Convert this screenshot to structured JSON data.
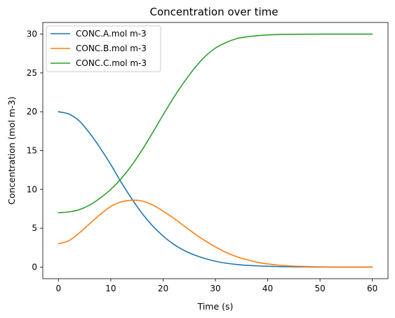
{
  "chart_data": {
    "type": "line",
    "title": "Concentration over time",
    "xlabel": "Time (s)",
    "ylabel": "Concentration (mol m-3)",
    "xlim": [
      -3,
      63
    ],
    "ylim": [
      -1.5,
      31.5
    ],
    "xticks": [
      0,
      10,
      20,
      30,
      40,
      50,
      60
    ],
    "yticks": [
      0,
      5,
      10,
      15,
      20,
      25,
      30
    ],
    "grid": false,
    "legend": "top-left",
    "x": [
      0,
      2,
      4,
      6,
      8,
      10,
      12,
      14,
      16,
      18,
      20,
      22,
      24,
      26,
      28,
      30,
      32,
      34,
      36,
      38,
      40,
      42,
      44,
      46,
      48,
      50,
      52,
      54,
      56,
      58,
      60
    ],
    "series": [
      {
        "name": "CONC.A.mol m-3",
        "color": "#1f77b4",
        "values": [
          20.0,
          19.7,
          18.8,
          17.2,
          15.3,
          13.2,
          10.9,
          8.8,
          6.9,
          5.3,
          4.0,
          2.95,
          2.15,
          1.55,
          1.1,
          0.75,
          0.5,
          0.34,
          0.22,
          0.15,
          0.1,
          0.06,
          0.04,
          0.02,
          0.01,
          0.0,
          0.0,
          0.0,
          0.0,
          0.0,
          0.0
        ]
      },
      {
        "name": "CONC.B.mol m-3",
        "color": "#ff7f0e",
        "values": [
          3.0,
          3.4,
          4.4,
          5.6,
          6.8,
          7.8,
          8.4,
          8.6,
          8.5,
          8.0,
          7.2,
          6.3,
          5.3,
          4.3,
          3.4,
          2.6,
          1.9,
          1.35,
          0.95,
          0.62,
          0.4,
          0.25,
          0.15,
          0.09,
          0.05,
          0.03,
          0.01,
          0.0,
          0.0,
          0.0,
          0.0
        ]
      },
      {
        "name": "CONC.C.mol m-3",
        "color": "#2ca02c",
        "values": [
          7.0,
          7.1,
          7.4,
          8.0,
          8.9,
          10.0,
          11.4,
          13.1,
          15.1,
          17.3,
          19.6,
          21.8,
          23.8,
          25.6,
          27.1,
          28.2,
          28.9,
          29.4,
          29.65,
          29.8,
          29.9,
          29.95,
          29.97,
          29.98,
          29.99,
          30.0,
          30.0,
          30.0,
          30.0,
          30.0,
          30.0
        ]
      }
    ]
  }
}
